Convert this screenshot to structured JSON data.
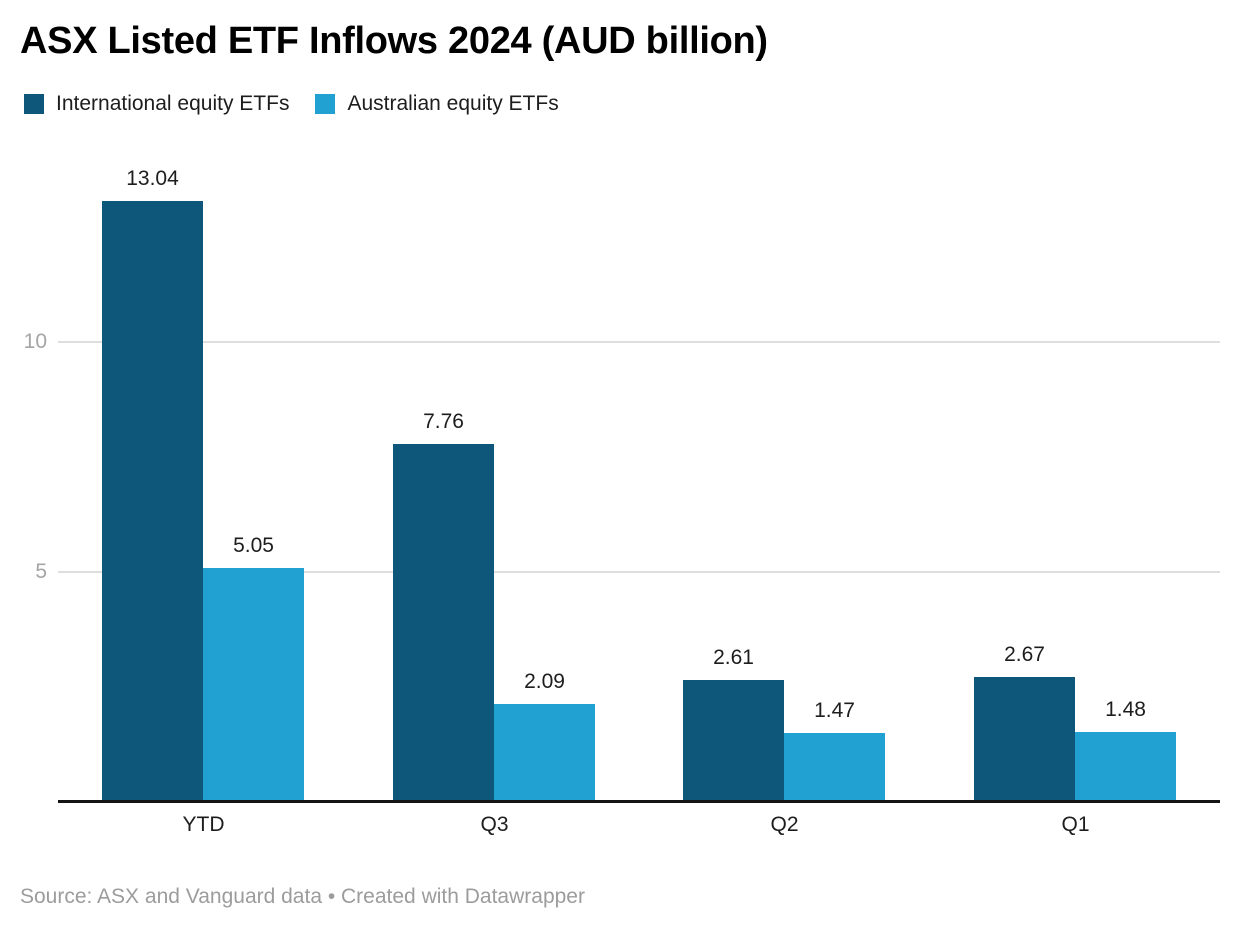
{
  "title": "ASX Listed ETF Inflows 2024 (AUD billion)",
  "footer": "Source: ASX and Vanguard data • Created with Datawrapper",
  "colors": {
    "series_dark_blue": "#0e567a",
    "series_light_blue": "#21a1d1",
    "gridline": "#dedede",
    "axis_line": "#141414",
    "y_tick_text": "#a5a5a5",
    "label_text": "#1d1d1d",
    "footer_text": "#9c9c9c",
    "title_text": "#000000",
    "background": "#ffffff"
  },
  "chart_data": {
    "type": "bar",
    "title": "ASX Listed ETF Inflows 2024 (AUD billion)",
    "categories": [
      "YTD",
      "Q3",
      "Q2",
      "Q1"
    ],
    "series": [
      {
        "name": "International equity ETFs",
        "color": "#0e567a",
        "values": [
          13.04,
          7.76,
          2.61,
          2.67
        ]
      },
      {
        "name": "Australian equity ETFs",
        "color": "#21a1d1",
        "values": [
          5.05,
          2.09,
          1.47,
          1.48
        ]
      }
    ],
    "xlabel": "",
    "ylabel": "",
    "ylim": [
      0,
      13.5
    ],
    "yticks": [
      5,
      10
    ],
    "grid": "horizontal-only",
    "legend_position": "top-left",
    "value_labels": "above-bars, 2 decimal places",
    "bar_orientation": "vertical, grouped pairs touching"
  }
}
